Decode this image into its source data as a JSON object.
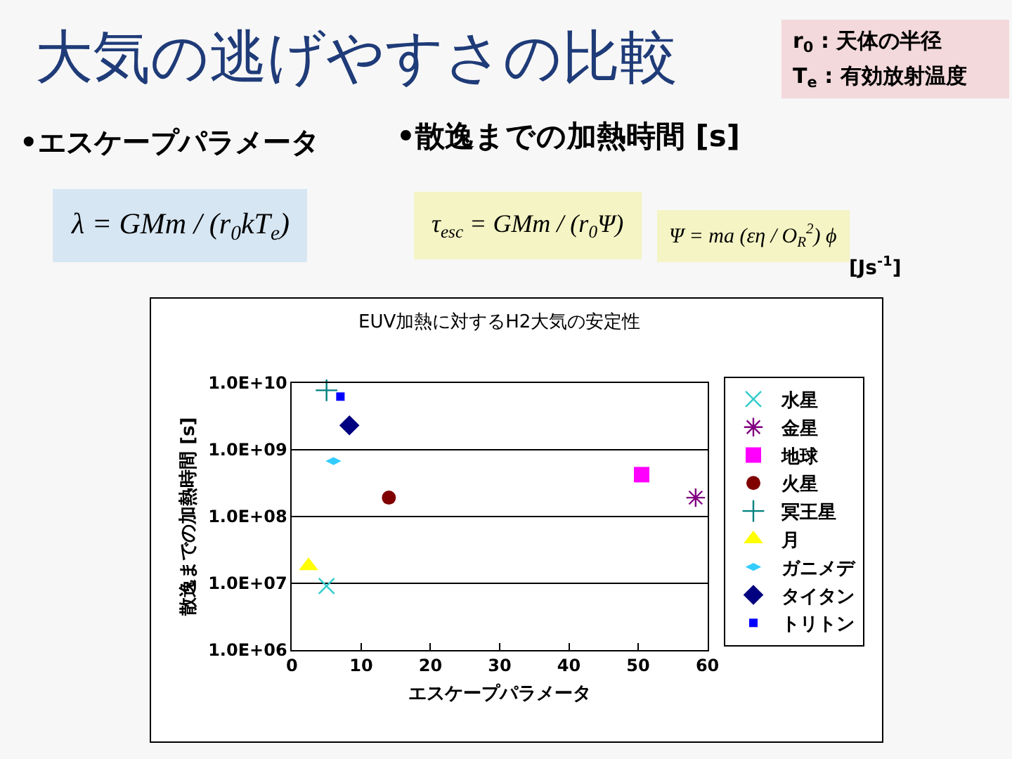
{
  "chart_data": {
    "type": "scatter",
    "title": "大気の逃げやすさの比較",
    "subtitle": "EUV加熱に対するH2大気の安定性",
    "xlabel": "エスケープパラメータ",
    "ylabel": "散逸までの加熱時間 [s]",
    "log": "y",
    "grid": "y",
    "legend": "right",
    "xlim": [
      0,
      60
    ],
    "xticks": [
      0,
      10,
      20,
      30,
      40,
      50,
      60
    ],
    "ylim": [
      1000000,
      10000000000
    ],
    "yticks": [
      {
        "value": 1000000,
        "label": "1.0E+06"
      },
      {
        "value": 10000000,
        "label": "1.0E+07"
      },
      {
        "value": 100000000,
        "label": "1.0E+08"
      },
      {
        "value": 1000000000,
        "label": "1.0E+09"
      },
      {
        "value": 10000000000,
        "label": "1.0E+10"
      }
    ],
    "series": [
      {
        "name": "水星",
        "color": "#33cccc",
        "marker": "x",
        "x": [
          5
        ],
        "values": [
          9000000
        ]
      },
      {
        "name": "金星",
        "color": "#800080",
        "x": [
          58.3
        ],
        "values": [
          190000000
        ]
      },
      {
        "name": "地球",
        "color": "#ff00ff",
        "marker": "square",
        "x": [
          50.5
        ],
        "values": [
          420000000
        ]
      },
      {
        "name": "火星",
        "color": "#800000",
        "marker": "circle",
        "x": [
          14
        ],
        "values": [
          190000000
        ]
      },
      {
        "name": "冥王星",
        "color": "#008080",
        "marker": "cross",
        "x": [
          5
        ],
        "values": [
          7700000000
        ]
      },
      {
        "name": "月",
        "color": "#ffff00",
        "marker": "triangle",
        "x": [
          2.4
        ],
        "values": [
          18000000
        ]
      },
      {
        "name": "ガニメデ",
        "color": "#33ccff",
        "x": [
          6
        ],
        "values": [
          670000000
        ]
      },
      {
        "name": "タイタン",
        "color": "#000080",
        "marker": "diamond",
        "x": [
          8.3
        ],
        "values": [
          2300000000
        ]
      },
      {
        "name": "トリトン",
        "color": "#0000ff",
        "x": [
          7
        ],
        "values": [
          6200000000
        ]
      }
    ],
    "annotations": [
      "r$_{0}$ : 天体の半径",
      "T$_{e}$ : 有効放射温度",
      "•エスケープパラメータ",
      "•散逸までの加熱時間 [s]",
      "λ = GMm / (r$_{0}$kT$_{e}$)",
      "τ$_{esc}$ = GMm / (r$_{0}$Ψ)",
      "Ψ = ma (εη / O$_{R}$$^{2}$) ϕ",
      "[Js$^{-1}$]"
    ]
  }
}
